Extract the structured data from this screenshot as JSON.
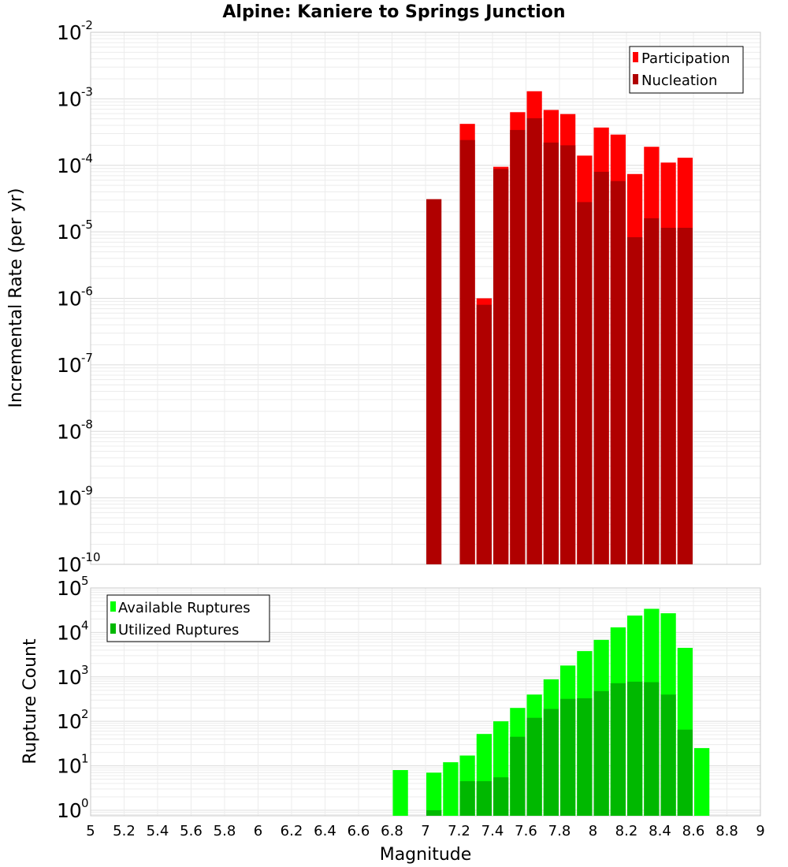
{
  "chart_data": [
    {
      "type": "bar",
      "title": "Alpine: Kaniere to Springs Junction",
      "xlabel": "",
      "ylabel": "Incremental Rate (per yr)",
      "yscale": "log",
      "ylim": [
        1e-10,
        0.01
      ],
      "xlim": [
        5,
        9
      ],
      "yticks": [
        {
          "base": "10",
          "exp": "-2"
        },
        {
          "base": "10",
          "exp": "-3"
        },
        {
          "base": "10",
          "exp": "-4"
        },
        {
          "base": "10",
          "exp": "-5"
        },
        {
          "base": "10",
          "exp": "-6"
        },
        {
          "base": "10",
          "exp": "-7"
        },
        {
          "base": "10",
          "exp": "-8"
        },
        {
          "base": "10",
          "exp": "-9"
        },
        {
          "base": "10",
          "exp": "-10"
        }
      ],
      "legend": {
        "position": "top-right",
        "entries": [
          "Participation",
          "Nucleation"
        ]
      },
      "grid": true,
      "series": [
        {
          "name": "Participation",
          "color": "#ff0000",
          "x": [
            7.25,
            7.35,
            7.45,
            7.55,
            7.65,
            7.75,
            7.85,
            7.95,
            8.05,
            8.15,
            8.25,
            8.35,
            8.45,
            8.55
          ],
          "values": [
            0.00042,
            1e-06,
            9.5e-05,
            0.00063,
            0.0013,
            0.00068,
            0.00059,
            0.00014,
            0.00037,
            0.00029,
            7.4e-05,
            0.00019,
            0.00011,
            0.00013
          ]
        },
        {
          "name": "Nucleation",
          "color": "#b00000",
          "x": [
            7.05,
            7.25,
            7.35,
            7.45,
            7.55,
            7.65,
            7.75,
            7.85,
            7.95,
            8.05,
            8.15,
            8.25,
            8.35,
            8.45,
            8.55
          ],
          "values": [
            3.1e-05,
            0.00024,
            8e-07,
            8.8e-05,
            0.00034,
            0.00051,
            0.00022,
            0.0002,
            2.8e-05,
            8e-05,
            5.8e-05,
            8.3e-06,
            1.6e-05,
            1.15e-05,
            1.15e-05
          ]
        }
      ]
    },
    {
      "type": "bar",
      "title": "",
      "xlabel": "Magnitude",
      "ylabel": "Rupture Count",
      "yscale": "log",
      "ylim": [
        0.75,
        100000.0
      ],
      "xlim": [
        5,
        9
      ],
      "yticks": [
        {
          "base": "10",
          "exp": "5"
        },
        {
          "base": "10",
          "exp": "4"
        },
        {
          "base": "10",
          "exp": "3"
        },
        {
          "base": "10",
          "exp": "2"
        },
        {
          "base": "10",
          "exp": "1"
        },
        {
          "base": "10",
          "exp": "0"
        }
      ],
      "xticks": [
        "5",
        "5.2",
        "5.4",
        "5.6",
        "5.8",
        "6",
        "6.2",
        "6.4",
        "6.6",
        "6.8",
        "7",
        "7.2",
        "7.4",
        "7.6",
        "7.8",
        "8",
        "8.2",
        "8.4",
        "8.6",
        "8.8",
        "9"
      ],
      "legend": {
        "position": "top-left",
        "entries": [
          "Available Ruptures",
          "Utilized Ruptures"
        ]
      },
      "grid": true,
      "series": [
        {
          "name": "Available Ruptures",
          "color": "#00ff00",
          "x": [
            6.85,
            7.05,
            7.15,
            7.25,
            7.35,
            7.45,
            7.55,
            7.65,
            7.75,
            7.85,
            7.95,
            8.05,
            8.15,
            8.25,
            8.35,
            8.45,
            8.55,
            8.65
          ],
          "values": [
            8,
            7,
            12,
            17,
            52,
            100,
            200,
            400,
            880,
            1800,
            3800,
            6800,
            13000,
            24000,
            34000,
            27000,
            4500,
            25
          ]
        },
        {
          "name": "Utilized Ruptures",
          "color": "#00b800",
          "x": [
            7.05,
            7.25,
            7.35,
            7.45,
            7.55,
            7.65,
            7.75,
            7.85,
            7.95,
            8.05,
            8.15,
            8.25,
            8.35,
            8.45,
            8.55
          ],
          "values": [
            1,
            4.5,
            4.5,
            5.5,
            45,
            120,
            190,
            320,
            330,
            480,
            720,
            780,
            760,
            400,
            65
          ]
        }
      ]
    }
  ]
}
